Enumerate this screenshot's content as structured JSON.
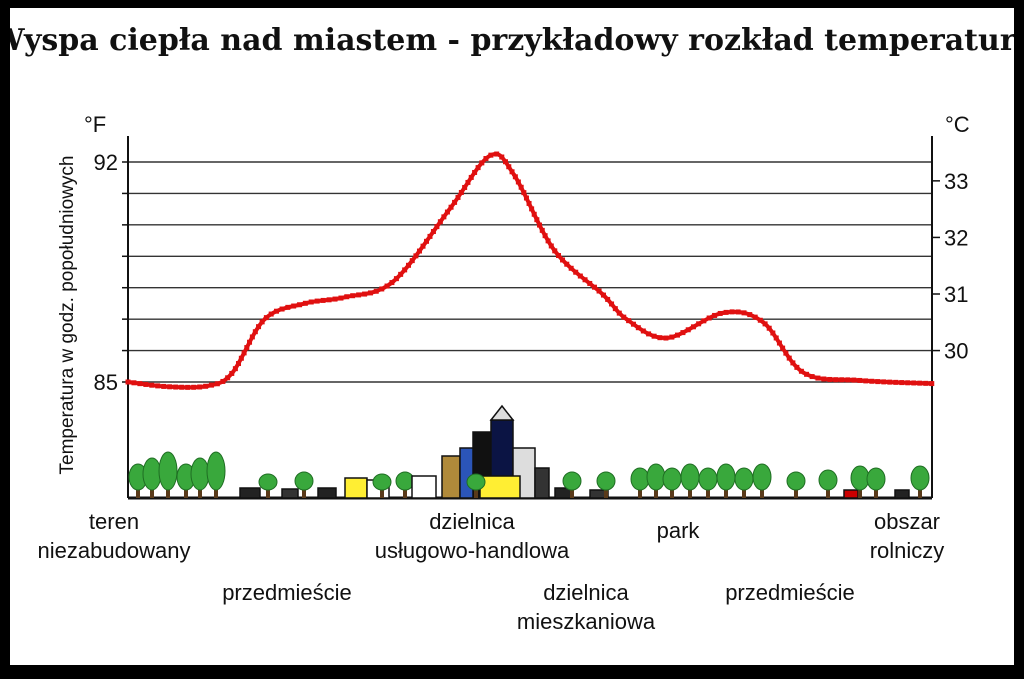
{
  "chart_data": {
    "type": "line",
    "title": "Wyspa ciepła nad miastem - przykładowy rozkład temperatury",
    "ylabel": "Temperatura w godz. popołudniowych",
    "y_left_unit": "°F",
    "y_right_unit": "°C",
    "y_left_ticks": [
      {
        "value": 92,
        "label": "92"
      },
      {
        "value": 85,
        "label": "85"
      }
    ],
    "y_right_ticks": [
      {
        "value": 33,
        "label": "33"
      },
      {
        "value": 32,
        "label": "32"
      },
      {
        "value": 31,
        "label": "31"
      },
      {
        "value": 30,
        "label": "30"
      }
    ],
    "ylim_f": [
      85,
      92
    ],
    "grid": true,
    "line_color": "#e01010",
    "x_categories": [
      "teren niezabudowany",
      "przedmieście",
      "dzielnica usługowo-handlowa",
      "dzielnica mieszkaniowa",
      "park",
      "przedmieście",
      "obszar rolniczy"
    ],
    "series": [
      {
        "points_f": [
          [
            0.0,
            85.0
          ],
          [
            0.05,
            84.85
          ],
          [
            0.1,
            84.88
          ],
          [
            0.13,
            85.3
          ],
          [
            0.17,
            87.0
          ],
          [
            0.22,
            87.5
          ],
          [
            0.27,
            87.7
          ],
          [
            0.33,
            88.2
          ],
          [
            0.4,
            90.5
          ],
          [
            0.45,
            92.2
          ],
          [
            0.48,
            91.6
          ],
          [
            0.53,
            89.2
          ],
          [
            0.59,
            87.8
          ],
          [
            0.62,
            87.0
          ],
          [
            0.67,
            86.4
          ],
          [
            0.74,
            87.2
          ],
          [
            0.79,
            86.9
          ],
          [
            0.84,
            85.3
          ],
          [
            0.91,
            85.05
          ],
          [
            1.0,
            84.95
          ]
        ]
      }
    ]
  },
  "labels": {
    "x_categories_lines": [
      [
        "teren",
        "niezabudowany"
      ],
      [
        "przedmieście"
      ],
      [
        "dzielnica",
        "usługowo-handlowa"
      ],
      [
        "dzielnica",
        "mieszkaniowa"
      ],
      [
        "park"
      ],
      [
        "przedmieście"
      ],
      [
        "obszar",
        "rolniczy"
      ]
    ]
  }
}
